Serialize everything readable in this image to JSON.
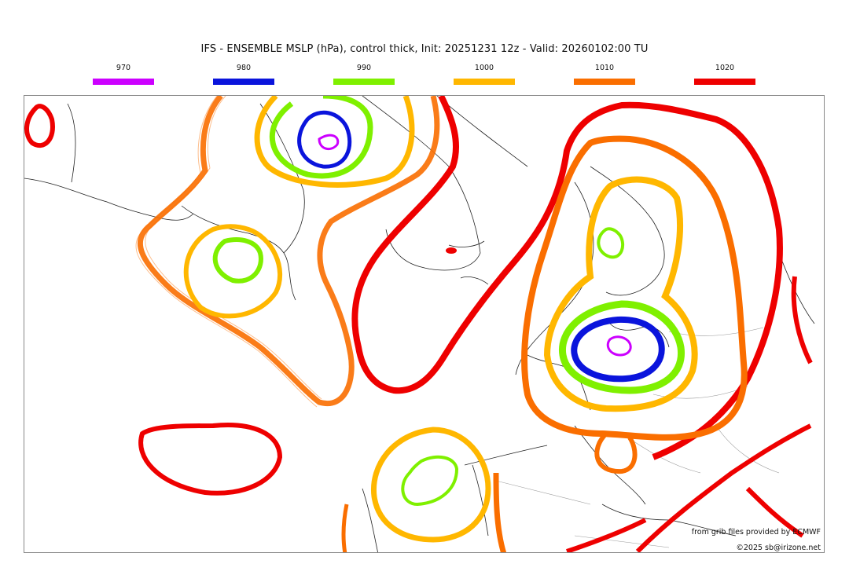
{
  "title": "IFS - ENSEMBLE MSLP (hPa), control thick, Init: 20251231 12z - Valid: 20260102:00 TU",
  "legend": [
    {
      "label": "970",
      "color": "#cc00ff"
    },
    {
      "label": "980",
      "color": "#0a14dc"
    },
    {
      "label": "990",
      "color": "#7ff000"
    },
    {
      "label": "1000",
      "color": "#ffb700"
    },
    {
      "label": "1010",
      "color": "#fa6e00"
    },
    {
      "label": "1020",
      "color": "#ee0000"
    }
  ],
  "credits": {
    "source": "from grib files provided by ECMWF",
    "copyright": "©2025 sb@irizone.net"
  }
}
